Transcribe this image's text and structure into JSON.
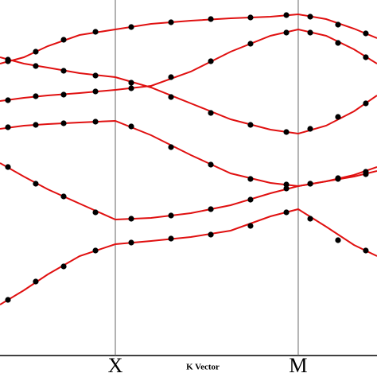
{
  "chart_data": [
    {
      "type": "line",
      "xlabel": "K Vector",
      "xlim": [
        0,
        3.269
      ],
      "ylim": [
        0,
        4.47
      ],
      "xticks": [
        {
          "value": 1,
          "label": "X"
        },
        {
          "value": 2.586,
          "label": "M"
        }
      ],
      "grid": true,
      "x": [
        0,
        0.207,
        0.414,
        0.69,
        1,
        1.31,
        1.655,
        2,
        2.345,
        2.586,
        2.828,
        3.069,
        3.269
      ],
      "series": [
        {
          "color": "#e01010",
          "values": [
            0.64,
            0.82,
            1.02,
            1.25,
            1.4,
            1.44,
            1.49,
            1.57,
            1.75,
            1.84,
            1.62,
            1.39,
            1.25
          ]
        },
        {
          "color": "#e01010",
          "values": [
            2.42,
            2.25,
            2.09,
            1.91,
            1.71,
            1.73,
            1.79,
            1.89,
            2.04,
            2.13,
            2.19,
            2.27,
            2.37
          ]
        },
        {
          "color": "#e01010",
          "values": [
            2.85,
            2.89,
            2.91,
            2.93,
            2.95,
            2.77,
            2.52,
            2.29,
            2.17,
            2.13,
            2.19,
            2.25,
            2.32
          ]
        },
        {
          "color": "#e01010",
          "values": [
            3.2,
            3.24,
            3.27,
            3.3,
            3.34,
            3.39,
            3.57,
            3.82,
            4.02,
            4.1,
            4.02,
            3.85,
            3.67
          ]
        },
        {
          "color": "#e01010",
          "values": [
            3.75,
            3.67,
            3.62,
            3.55,
            3.5,
            3.37,
            3.17,
            2.97,
            2.84,
            2.79,
            2.89,
            3.07,
            3.27
          ]
        },
        {
          "color": "#e01010",
          "values": [
            3.67,
            3.75,
            3.89,
            4.03,
            4.1,
            4.17,
            4.21,
            4.24,
            4.26,
            4.29,
            4.23,
            4.11,
            3.99
          ]
        }
      ]
    },
    {
      "type": "scatter",
      "xlim": [
        0,
        3.269
      ],
      "ylim": [
        0,
        4.47
      ],
      "x": [
        0.069,
        0.31,
        0.552,
        0.828,
        1.138,
        1.483,
        1.828,
        2.172,
        2.483,
        2.69,
        2.931,
        3.172
      ],
      "series": [
        {
          "color": "#000000",
          "values": [
            0.7,
            0.93,
            1.12,
            1.32,
            1.42,
            1.47,
            1.52,
            1.63,
            1.8,
            1.72,
            1.45,
            1.32
          ]
        },
        {
          "color": "#000000",
          "values": [
            2.37,
            2.16,
            2.0,
            1.8,
            1.72,
            1.76,
            1.84,
            1.96,
            2.1,
            2.16,
            2.23,
            2.31
          ]
        },
        {
          "color": "#000000",
          "values": [
            2.87,
            2.9,
            2.92,
            2.94,
            2.88,
            2.62,
            2.4,
            2.22,
            2.15,
            2.16,
            2.22,
            2.28
          ]
        },
        {
          "color": "#000000",
          "values": [
            3.21,
            3.26,
            3.28,
            3.32,
            3.36,
            3.5,
            3.7,
            3.92,
            4.06,
            4.06,
            3.93,
            3.75
          ]
        },
        {
          "color": "#000000",
          "values": [
            3.72,
            3.64,
            3.58,
            3.52,
            3.43,
            3.25,
            3.05,
            2.9,
            2.81,
            2.85,
            3.0,
            3.17
          ]
        },
        {
          "color": "#000000",
          "values": [
            3.7,
            3.82,
            3.97,
            4.07,
            4.13,
            4.19,
            4.23,
            4.25,
            4.28,
            4.26,
            4.16,
            4.05
          ]
        }
      ]
    }
  ]
}
